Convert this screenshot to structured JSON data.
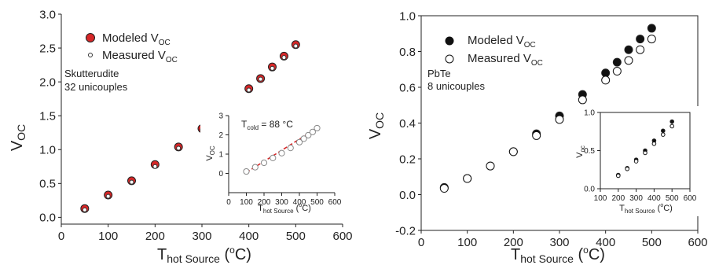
{
  "chart_data": [
    {
      "type": "scatter",
      "x_axis": {
        "label_main": "T",
        "label_sub": "hot Source",
        "label_sup": "o",
        "label_tail": "C)",
        "label_open": " (",
        "range": [
          0,
          600
        ],
        "ticks": [
          "0",
          "100",
          "200",
          "300",
          "400",
          "500",
          "600"
        ]
      },
      "y_axis": {
        "label_main": "V",
        "label_sub": "OC",
        "range": [
          -0.1,
          3.0
        ],
        "ticks": [
          "0.0",
          "0.5",
          "1.0",
          "1.5",
          "2.0",
          "2.5",
          "3.0"
        ]
      },
      "annotation": [
        "Skutterudite",
        "32 unicouples"
      ],
      "legend": {
        "position": "top-left"
      },
      "series": [
        {
          "name_main": "Modeled V",
          "name_sub": "OC",
          "marker": "filled-circle",
          "color": "#d62728",
          "x": [
            50,
            100,
            150,
            200,
            250,
            300,
            350,
            400,
            425,
            450,
            475,
            500
          ],
          "y": [
            0.13,
            0.33,
            0.54,
            0.78,
            1.04,
            1.31,
            1.6,
            1.9,
            2.05,
            2.22,
            2.38,
            2.55
          ]
        },
        {
          "name_main": "Measured V",
          "name_sub": "OC",
          "marker": "open-circle",
          "color": "#333333",
          "x": [
            50,
            100,
            150,
            200,
            250,
            300,
            350,
            400,
            425,
            450,
            475,
            500
          ],
          "y": [
            0.11,
            0.31,
            0.52,
            0.75,
            1.02,
            1.29,
            1.58,
            1.88,
            2.04,
            2.2,
            2.36,
            2.53
          ]
        }
      ],
      "inset": {
        "annotation_main": "T",
        "annotation_sub": "cold",
        "annotation_tail": " = 88 °C",
        "x_axis": {
          "label_main": "T",
          "label_sub": "hot Source",
          "label_sup": "o",
          "label_tail": "C)",
          "label_open": " (",
          "range": [
            0,
            600
          ],
          "ticks": [
            "0",
            "100",
            "200",
            "300",
            "400",
            "500",
            "600"
          ]
        },
        "y_axis": {
          "label_main": "V",
          "label_sub": "OC",
          "range": [
            -1,
            3
          ],
          "ticks": [
            "0",
            "1",
            "2",
            "3"
          ]
        },
        "fit_line": {
          "color": "#d62728",
          "x": [
            100,
            500
          ],
          "y": [
            0.05,
            2.35
          ]
        },
        "series": [
          {
            "marker": "open-circle",
            "color": "#888888",
            "x": [
              100,
              150,
              200,
              250,
              300,
              350,
              400,
              425,
              450,
              475,
              500
            ],
            "y": [
              0.1,
              0.32,
              0.55,
              0.8,
              1.05,
              1.32,
              1.62,
              1.8,
              1.98,
              2.15,
              2.35
            ]
          }
        ]
      }
    },
    {
      "type": "scatter",
      "x_axis": {
        "label_main": "T",
        "label_sub": "hot Source",
        "label_sup": "o",
        "label_tail": "C)",
        "label_open": " (",
        "range": [
          0,
          600
        ],
        "ticks": [
          "0",
          "100",
          "200",
          "300",
          "400",
          "500",
          "600"
        ]
      },
      "y_axis": {
        "label_main": "V",
        "label_sub": "OC",
        "range": [
          -0.2,
          1.0
        ],
        "ticks": [
          "-0.2",
          "0.0",
          "0.2",
          "0.4",
          "0.6",
          "0.8",
          "1.0"
        ]
      },
      "annotation": [
        "PbTe",
        "8 unicouples"
      ],
      "legend": {
        "position": "top-left"
      },
      "series": [
        {
          "name_main": "Modeled V",
          "name_sub": "OC",
          "marker": "filled-circle",
          "color": "#111111",
          "x": [
            50,
            100,
            150,
            200,
            250,
            300,
            350,
            400,
            425,
            450,
            475,
            500
          ],
          "y": [
            0.04,
            0.09,
            0.16,
            0.24,
            0.34,
            0.44,
            0.56,
            0.68,
            0.74,
            0.81,
            0.87,
            0.93
          ]
        },
        {
          "name_main": "Measured V",
          "name_sub": "OC",
          "marker": "open-circle",
          "color": "#111111",
          "x": [
            50,
            100,
            150,
            200,
            250,
            300,
            350,
            400,
            425,
            450,
            475,
            500
          ],
          "y": [
            0.035,
            0.09,
            0.16,
            0.24,
            0.33,
            0.42,
            0.53,
            0.64,
            0.69,
            0.75,
            0.81,
            0.87
          ]
        }
      ],
      "inset": {
        "x_axis": {
          "label_main": "T",
          "label_sub": "hot Source",
          "label_sup": "o",
          "label_tail": "C)",
          "label_open": " (",
          "range": [
            100,
            600
          ],
          "ticks": [
            "100",
            "200",
            "300",
            "400",
            "500",
            "600"
          ]
        },
        "y_axis": {
          "label_main": "V",
          "label_sub": "oc",
          "range": [
            0,
            1.0
          ],
          "ticks": [
            "0.0",
            "0.5",
            "1.0"
          ]
        },
        "series": [
          {
            "marker": "filled-circle",
            "color": "#111111",
            "x": [
              200,
              250,
              300,
              350,
              400,
              450,
              500
            ],
            "y": [
              0.18,
              0.27,
              0.38,
              0.5,
              0.63,
              0.76,
              0.88
            ]
          },
          {
            "marker": "open-circle",
            "color": "#111111",
            "x": [
              200,
              250,
              300,
              350,
              400,
              450,
              500
            ],
            "y": [
              0.17,
              0.26,
              0.36,
              0.47,
              0.59,
              0.71,
              0.82
            ]
          }
        ]
      }
    }
  ]
}
